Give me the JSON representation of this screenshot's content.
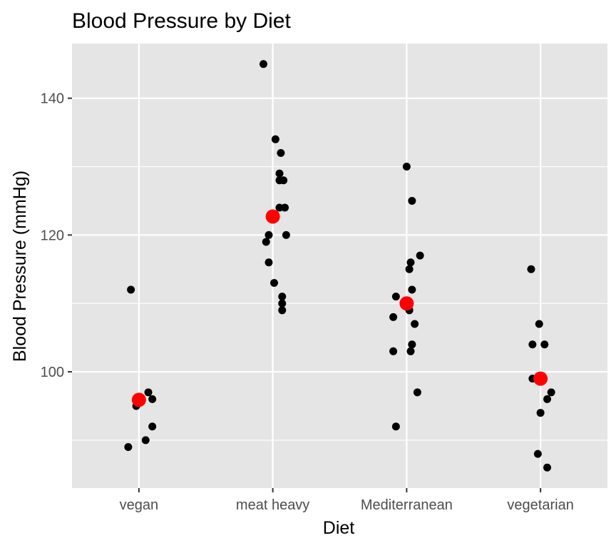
{
  "chart_data": {
    "type": "scatter",
    "title": "Blood Pressure by Diet",
    "xlabel": "Diet",
    "ylabel": "Blood Pressure (mmHg)",
    "categories": [
      "vegan",
      "meat heavy",
      "Mediterranean",
      "vegetarian"
    ],
    "ylim": [
      83,
      148
    ],
    "yticks": [
      100,
      120,
      140
    ],
    "y_minor_gridlines": [
      90,
      110,
      130
    ],
    "grid": true,
    "panel_color": "#e5e5e5",
    "point_color": "#000000",
    "mean_color": "#ff0000",
    "series": [
      {
        "name": "observations",
        "points": [
          {
            "category": "vegan",
            "jitter": -0.06,
            "y": 112
          },
          {
            "category": "vegan",
            "jitter": 0.07,
            "y": 97
          },
          {
            "category": "vegan",
            "jitter": 0.1,
            "y": 96
          },
          {
            "category": "vegan",
            "jitter": -0.02,
            "y": 95
          },
          {
            "category": "vegan",
            "jitter": 0.1,
            "y": 92
          },
          {
            "category": "vegan",
            "jitter": 0.05,
            "y": 90
          },
          {
            "category": "vegan",
            "jitter": -0.08,
            "y": 89
          },
          {
            "category": "meat heavy",
            "jitter": -0.07,
            "y": 145
          },
          {
            "category": "meat heavy",
            "jitter": 0.02,
            "y": 134
          },
          {
            "category": "meat heavy",
            "jitter": 0.06,
            "y": 132
          },
          {
            "category": "meat heavy",
            "jitter": 0.05,
            "y": 129
          },
          {
            "category": "meat heavy",
            "jitter": 0.05,
            "y": 128
          },
          {
            "category": "meat heavy",
            "jitter": 0.08,
            "y": 128
          },
          {
            "category": "meat heavy",
            "jitter": 0.05,
            "y": 124
          },
          {
            "category": "meat heavy",
            "jitter": 0.09,
            "y": 124
          },
          {
            "category": "meat heavy",
            "jitter": -0.03,
            "y": 120
          },
          {
            "category": "meat heavy",
            "jitter": 0.1,
            "y": 120
          },
          {
            "category": "meat heavy",
            "jitter": -0.05,
            "y": 119
          },
          {
            "category": "meat heavy",
            "jitter": -0.03,
            "y": 116
          },
          {
            "category": "meat heavy",
            "jitter": 0.01,
            "y": 113
          },
          {
            "category": "meat heavy",
            "jitter": 0.07,
            "y": 111
          },
          {
            "category": "meat heavy",
            "jitter": 0.07,
            "y": 110
          },
          {
            "category": "meat heavy",
            "jitter": 0.07,
            "y": 109
          },
          {
            "category": "Mediterranean",
            "jitter": 0.0,
            "y": 130
          },
          {
            "category": "Mediterranean",
            "jitter": 0.04,
            "y": 125
          },
          {
            "category": "Mediterranean",
            "jitter": 0.1,
            "y": 117
          },
          {
            "category": "Mediterranean",
            "jitter": 0.03,
            "y": 116
          },
          {
            "category": "Mediterranean",
            "jitter": 0.02,
            "y": 115
          },
          {
            "category": "Mediterranean",
            "jitter": 0.04,
            "y": 112
          },
          {
            "category": "Mediterranean",
            "jitter": -0.08,
            "y": 111
          },
          {
            "category": "Mediterranean",
            "jitter": 0.02,
            "y": 109
          },
          {
            "category": "Mediterranean",
            "jitter": -0.1,
            "y": 108
          },
          {
            "category": "Mediterranean",
            "jitter": 0.06,
            "y": 107
          },
          {
            "category": "Mediterranean",
            "jitter": 0.04,
            "y": 104
          },
          {
            "category": "Mediterranean",
            "jitter": -0.1,
            "y": 103
          },
          {
            "category": "Mediterranean",
            "jitter": 0.03,
            "y": 103
          },
          {
            "category": "Mediterranean",
            "jitter": 0.08,
            "y": 97
          },
          {
            "category": "Mediterranean",
            "jitter": -0.08,
            "y": 92
          },
          {
            "category": "vegetarian",
            "jitter": -0.07,
            "y": 115
          },
          {
            "category": "vegetarian",
            "jitter": -0.01,
            "y": 107
          },
          {
            "category": "vegetarian",
            "jitter": -0.06,
            "y": 104
          },
          {
            "category": "vegetarian",
            "jitter": 0.03,
            "y": 104
          },
          {
            "category": "vegetarian",
            "jitter": -0.06,
            "y": 99
          },
          {
            "category": "vegetarian",
            "jitter": 0.08,
            "y": 97
          },
          {
            "category": "vegetarian",
            "jitter": 0.05,
            "y": 96
          },
          {
            "category": "vegetarian",
            "jitter": 0.0,
            "y": 94
          },
          {
            "category": "vegetarian",
            "jitter": -0.02,
            "y": 88
          },
          {
            "category": "vegetarian",
            "jitter": 0.05,
            "y": 86
          }
        ]
      },
      {
        "name": "mean",
        "points": [
          {
            "category": "vegan",
            "y": 95.9
          },
          {
            "category": "meat heavy",
            "y": 122.7
          },
          {
            "category": "Mediterranean",
            "y": 110.0
          },
          {
            "category": "vegetarian",
            "y": 99.0
          }
        ]
      }
    ]
  }
}
